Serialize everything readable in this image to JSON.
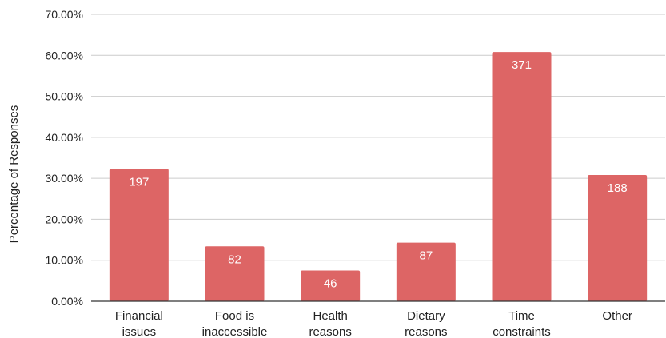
{
  "chart_data": {
    "type": "bar",
    "title": "",
    "xlabel": "",
    "ylabel": "Percentage of Responses",
    "ylim": [
      0,
      70
    ],
    "yticks": [
      "0.00%",
      "10.00%",
      "20.00%",
      "30.00%",
      "40.00%",
      "50.00%",
      "60.00%",
      "70.00%"
    ],
    "grid": true,
    "legend": "none",
    "bar_color": "#dd6565",
    "categories": [
      [
        "Financial",
        "issues"
      ],
      [
        "Food is",
        "inaccessible"
      ],
      [
        "Health",
        "reasons"
      ],
      [
        "Dietary",
        "reasons"
      ],
      [
        "Time",
        "constraints"
      ],
      [
        "Other"
      ]
    ],
    "values": [
      32.3,
      13.4,
      7.5,
      14.3,
      60.8,
      30.8
    ],
    "data_labels": [
      "197",
      "82",
      "46",
      "87",
      "371",
      "188"
    ]
  }
}
